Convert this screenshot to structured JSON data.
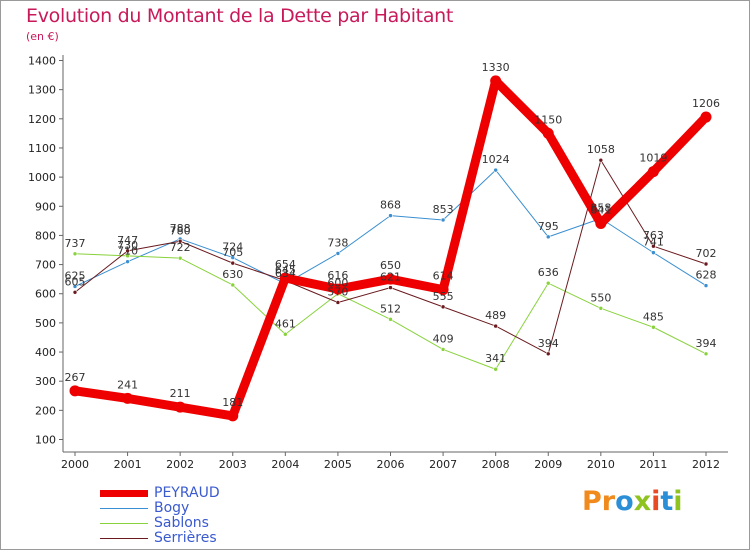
{
  "header": {
    "title": "Evolution du Montant de la Dette par Habitant",
    "unit": "(en €)"
  },
  "brand": {
    "text": "Proxiti",
    "letters": [
      "P",
      "r",
      "o",
      "x",
      "i",
      "t",
      "i"
    ],
    "colors": [
      "#f08a1c",
      "#f08a1c",
      "#2a8fd6",
      "#8fc31f",
      "#e84a24",
      "#2a8fd6",
      "#8fc31f"
    ]
  },
  "chart_data": {
    "type": "line",
    "title": "Evolution du Montant de la Dette par Habitant",
    "ylabel": "(en €)",
    "xlabel": "",
    "categories": [
      "2000",
      "2001",
      "2002",
      "2003",
      "2004",
      "2005",
      "2006",
      "2007",
      "2008",
      "2009",
      "2010",
      "2011",
      "2012"
    ],
    "ylim": [
      100,
      1400
    ],
    "yticks": [
      100,
      200,
      300,
      400,
      500,
      600,
      700,
      800,
      900,
      1000,
      1100,
      1200,
      1300,
      1400
    ],
    "grid": false,
    "legend": "bottom-left",
    "series": [
      {
        "name": "Bogy",
        "color": "#3b8fd0",
        "width": 1,
        "marker": 3,
        "values": [
          625,
          710,
          788,
          724,
          634,
          738,
          868,
          853,
          1024,
          795,
          858,
          741,
          628
        ]
      },
      {
        "name": "Sablons",
        "color": "#88d23c",
        "width": 1,
        "marker": 3,
        "values": [
          737,
          730,
          722,
          630,
          461,
          600,
          512,
          409,
          341,
          636,
          550,
          485,
          394
        ]
      },
      {
        "name": "Serrières",
        "color": "#6a1a1e",
        "width": 1,
        "marker": 3,
        "values": [
          605,
          747,
          780,
          705,
          645,
          570,
          621,
          555,
          489,
          394,
          1058,
          763,
          702
        ]
      },
      {
        "name": "PEYRAUD",
        "color": "#ee0000",
        "width": 9,
        "marker": 7,
        "values": [
          267,
          241,
          211,
          181,
          654,
          616,
          650,
          614,
          1330,
          1150,
          841,
          1019,
          1206
        ]
      }
    ],
    "data_labels": [
      {
        "year": "2000",
        "labels": [
          "267",
          "625",
          "737",
          "605"
        ]
      },
      {
        "year": "2001",
        "labels": [
          "241",
          "710",
          "730",
          "747"
        ]
      },
      {
        "year": "2002",
        "labels": [
          "211",
          "788",
          "722",
          "780"
        ]
      },
      {
        "year": "2003",
        "labels": [
          "181",
          "724",
          "630",
          "705"
        ]
      },
      {
        "year": "2004",
        "labels": [
          "654",
          "634",
          "461",
          "645"
        ]
      },
      {
        "year": "2005",
        "labels": [
          "616",
          "738",
          "600",
          "570"
        ]
      },
      {
        "year": "2006",
        "labels": [
          "650",
          "868",
          "512",
          "621"
        ]
      },
      {
        "year": "2007",
        "labels": [
          "614",
          "853",
          "409",
          "555"
        ]
      },
      {
        "year": "2008",
        "labels": [
          "1330",
          "1024",
          "341",
          "489"
        ]
      },
      {
        "year": "2009",
        "labels": [
          "1150",
          "795",
          "636",
          "394"
        ]
      },
      {
        "year": "2010",
        "labels": [
          "841",
          "858",
          "550",
          "1058"
        ]
      },
      {
        "year": "2011",
        "labels": [
          "1019",
          "741",
          "485",
          "763"
        ]
      },
      {
        "year": "2012",
        "labels": [
          "1206",
          "628",
          "394",
          "702"
        ]
      }
    ]
  }
}
